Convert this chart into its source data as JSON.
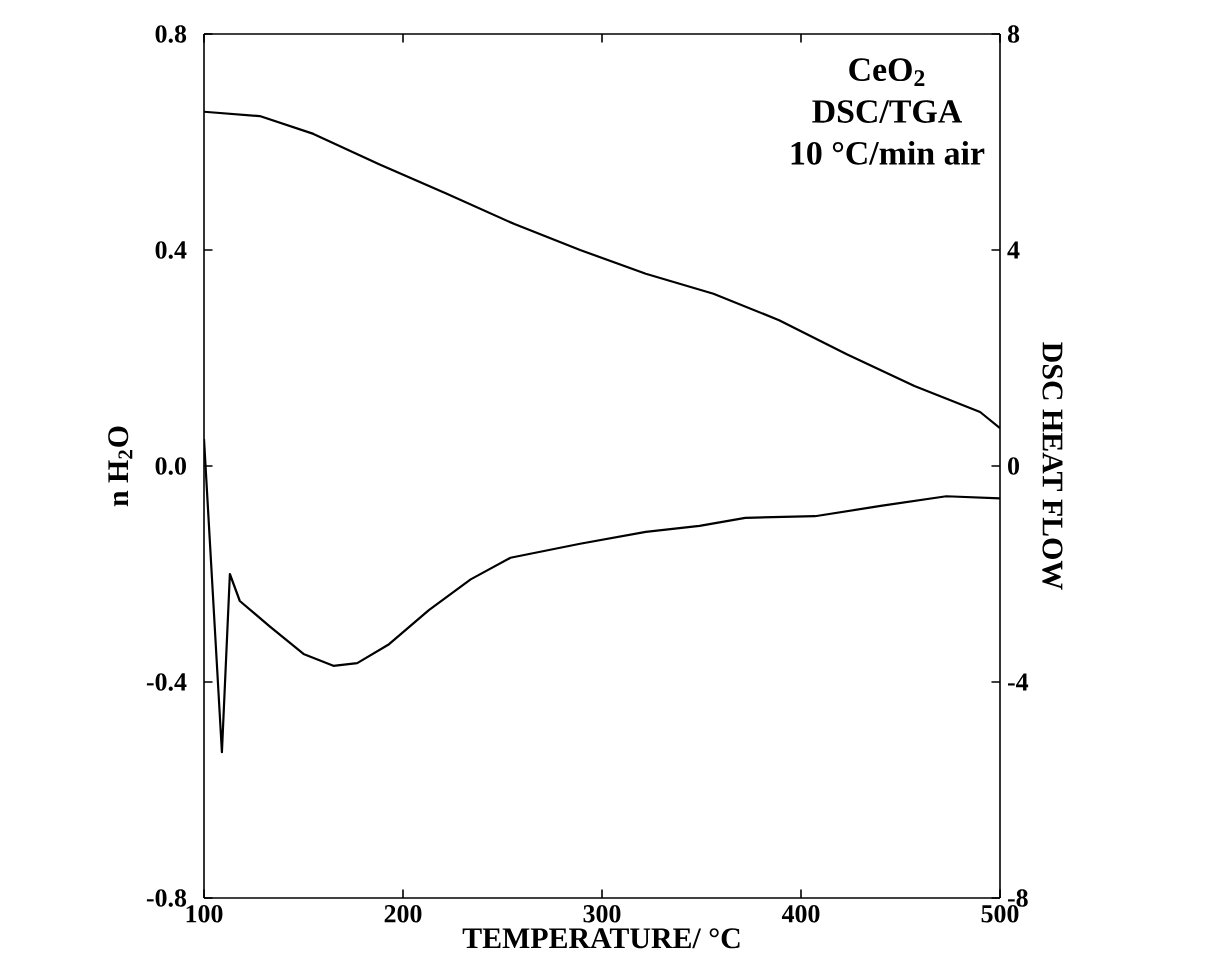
{
  "chart_data": {
    "type": "line",
    "xlabel": "TEMPERATURE/ °C",
    "ylabel": "n H$_{2}$O",
    "y2label": "DSC HEAT FLOW",
    "annotations": [
      "CeO$_{2}$",
      "DSC/TGA",
      "10 °C/min air"
    ],
    "xlim": [
      100,
      500
    ],
    "xticks": [
      100,
      200,
      300,
      400,
      500
    ],
    "ylim": [
      -0.8,
      0.8
    ],
    "yticks": [
      -0.8,
      -0.4,
      {
        "value": 0,
        "label": "0.0"
      },
      0.4,
      0.8
    ],
    "y2lim": [
      -8,
      8
    ],
    "y2ticks": [
      -8,
      -4,
      0,
      4,
      8
    ],
    "grid": false,
    "series": [
      {
        "color": "#000000",
        "x": [
          100,
          128,
          155,
          188,
          222,
          256,
          289,
          322,
          356,
          389,
          423,
          457,
          490,
          500
        ],
        "values": [
          0.656,
          0.648,
          0.615,
          0.559,
          0.504,
          0.448,
          0.4,
          0.356,
          0.319,
          0.27,
          0.207,
          0.148,
          0.1,
          0.07
        ]
      },
      {
        "color": "#000000",
        "axis": "y2",
        "x": [
          100,
          109,
          113,
          118,
          133,
          150,
          165,
          177,
          193,
          213,
          234,
          254,
          289,
          322,
          349,
          372,
          407,
          440,
          473,
          500
        ],
        "values": [
          0.5,
          -5.3,
          -2.0,
          -2.5,
          -2.97,
          -3.48,
          -3.7,
          -3.65,
          -3.3,
          -2.67,
          -2.1,
          -1.7,
          -1.44,
          -1.22,
          -1.11,
          -0.96,
          -0.93,
          -0.74,
          -0.56,
          -0.6
        ]
      }
    ]
  }
}
